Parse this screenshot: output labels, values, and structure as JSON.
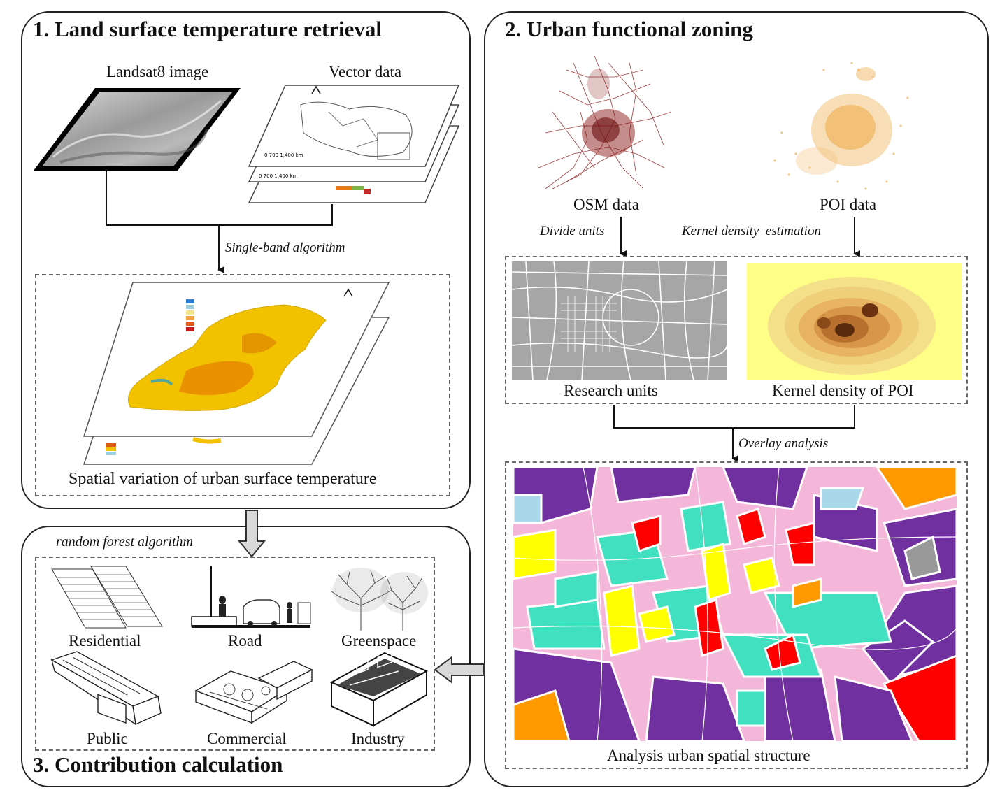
{
  "panels": {
    "lst": {
      "title": "1. Land surface temperature retrieval"
    },
    "zoning": {
      "title": "2. Urban functional zoning"
    },
    "contribution": {
      "title": "3. Contribution calculation"
    }
  },
  "lst": {
    "landsat_label": "Landsat8 image",
    "vector_label": "Vector data",
    "algorithm_label": "Single-band algorithm",
    "output_label": "Spatial variation of urban surface temperature"
  },
  "zoning": {
    "osm_label": "OSM data",
    "poi_label": "POI data",
    "divide_label": "Divide units",
    "kde_label": "Kernel density  estimation",
    "research_units_label": "Research units",
    "kernel_density_label": "Kernel density of POI",
    "overlay_label": "Overlay analysis",
    "structure_label": "Analysis urban spatial structure"
  },
  "contribution": {
    "algorithm_label": "random forest algorithm",
    "categories": [
      "Residential",
      "Road",
      "Greenspace",
      "Public",
      "Commercial",
      "Industry"
    ]
  },
  "colors": {
    "border": "#222222",
    "purple": "#7030a0",
    "pink": "#f4b6d9",
    "teal": "#40e0c0",
    "yellow": "#ffff00",
    "red": "#ff0000",
    "orange": "#ff9900",
    "light_blue": "#a8d8ea",
    "poi_orange": "#f3c27b",
    "osm_red": "#8b1a1a"
  },
  "icons": [
    "arrow-down-icon",
    "hollow-arrow-down-icon",
    "hollow-arrow-left-icon"
  ]
}
